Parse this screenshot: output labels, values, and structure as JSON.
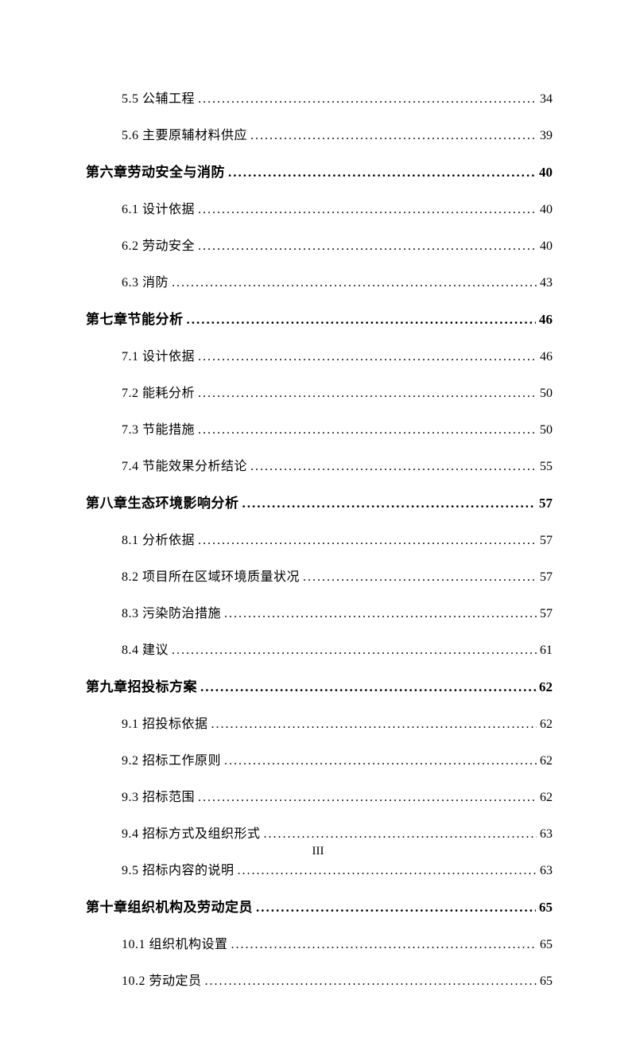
{
  "entries": [
    {
      "type": "sub",
      "label": "5.5 公辅工程",
      "page": "34"
    },
    {
      "type": "sub",
      "label": "5.6 主要原辅材料供应",
      "page": "39"
    },
    {
      "type": "chapter",
      "label": "第六章劳动安全与消防",
      "page": "40"
    },
    {
      "type": "sub",
      "label": "6.1 设计依据",
      "page": "40"
    },
    {
      "type": "sub",
      "label": "6.2 劳动安全",
      "page": "40"
    },
    {
      "type": "sub",
      "label": "6.3 消防",
      "page": "43"
    },
    {
      "type": "chapter",
      "label": "第七章节能分析",
      "page": "46"
    },
    {
      "type": "sub",
      "label": "7.1 设计依据",
      "page": "46"
    },
    {
      "type": "sub",
      "label": "7.2 能耗分析",
      "page": "50"
    },
    {
      "type": "sub",
      "label": "7.3 节能措施",
      "page": "50"
    },
    {
      "type": "sub",
      "label": "7.4 节能效果分析结论",
      "page": "55"
    },
    {
      "type": "chapter",
      "label": "第八章生态环境影响分析",
      "page": "57"
    },
    {
      "type": "sub",
      "label": "8.1 分析依据",
      "page": "57"
    },
    {
      "type": "sub",
      "label": "8.2 项目所在区域环境质量状况",
      "page": "57"
    },
    {
      "type": "sub",
      "label": "8.3 污染防治措施",
      "page": "57"
    },
    {
      "type": "sub",
      "label": "8.4 建议",
      "page": "61"
    },
    {
      "type": "chapter",
      "label": "第九章招投标方案",
      "page": "62"
    },
    {
      "type": "sub",
      "label": "9.1 招投标依据",
      "page": "62"
    },
    {
      "type": "sub",
      "label": "9.2 招标工作原则",
      "page": "62"
    },
    {
      "type": "sub",
      "label": "9.3 招标范围",
      "page": "62"
    },
    {
      "type": "sub",
      "label": "9.4 招标方式及组织形式",
      "page": "63"
    },
    {
      "type": "sub",
      "label": "9.5 招标内容的说明",
      "page": "63"
    },
    {
      "type": "chapter",
      "label": "第十章组织机构及劳动定员",
      "page": "65"
    },
    {
      "type": "sub",
      "label": "10.1 组织机构设置",
      "page": "65"
    },
    {
      "type": "sub",
      "label": "10.2 劳动定员",
      "page": "65"
    }
  ],
  "pageNumber": "III",
  "dots": "................................................................................................................"
}
